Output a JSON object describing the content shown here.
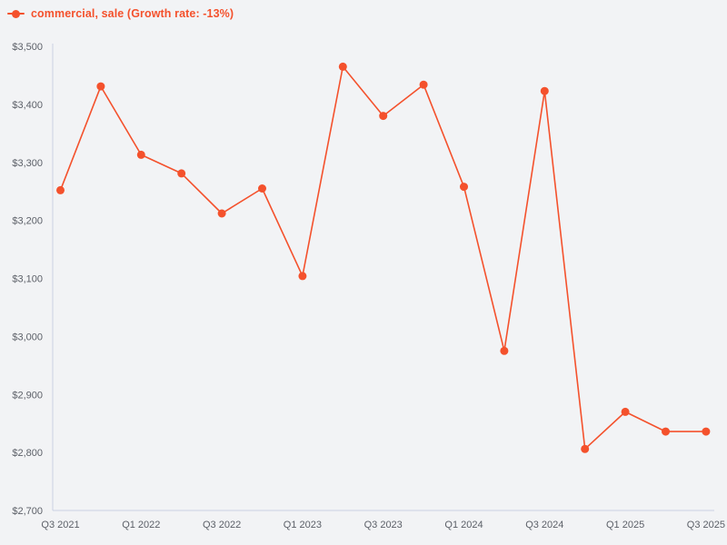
{
  "legend": {
    "label": "commercial, sale (Growth rate: -13%)"
  },
  "colors": {
    "accent": "#f4512c",
    "background": "#f2f3f5",
    "axis": "#c9d0e2",
    "tick_label": "#5c6068"
  },
  "chart_data": {
    "type": "line",
    "title": "",
    "xlabel": "",
    "ylabel": "",
    "categories": [
      "Q3 2021",
      "Q4 2021",
      "Q1 2022",
      "Q2 2022",
      "Q3 2022",
      "Q4 2022",
      "Q1 2023",
      "Q2 2023",
      "Q3 2023",
      "Q4 2023",
      "Q1 2024",
      "Q2 2024",
      "Q3 2024",
      "Q4 2024",
      "Q1 2025",
      "Q2 2025",
      "Q3 2025"
    ],
    "series": [
      {
        "name": "commercial, sale",
        "values": [
          3252,
          3431,
          3313,
          3281,
          3212,
          3255,
          3104,
          3465,
          3380,
          3434,
          3258,
          2975,
          3423,
          2806,
          2870,
          2836,
          2836
        ]
      }
    ],
    "growth_rate": "-13%",
    "ylim": [
      2700,
      3500
    ],
    "y_tick_step": 100,
    "y_tick_prefix": "$",
    "y_tick_labels": [
      "$2,700",
      "$2,800",
      "$2,900",
      "$3,000",
      "$3,100",
      "$3,200",
      "$3,300",
      "$3,400",
      "$3,500"
    ],
    "x_tick_every": 2,
    "x_tick_labels": [
      "Q3 2021",
      "Q1 2022",
      "Q3 2022",
      "Q1 2023",
      "Q3 2023",
      "Q1 2024",
      "Q3 2024",
      "Q1 2025",
      "Q3 2025"
    ],
    "grid": false,
    "legend_position": "top-left",
    "marker": "circle"
  }
}
